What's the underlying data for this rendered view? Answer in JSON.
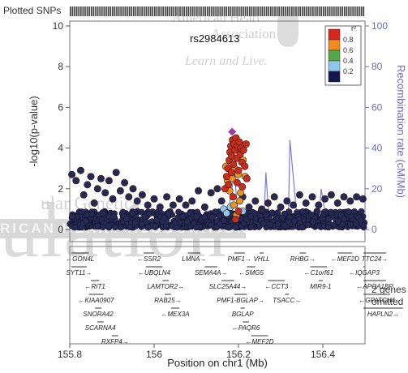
{
  "chart_data": {
    "type": "scatter",
    "title": "",
    "plotted_snps_label": "Plotted SNPs",
    "xlabel": "Position on chr1 (Mb)",
    "ylabel": "-log10(p-value)",
    "ylabel_right": "Recombination rate (cM/Mb)",
    "xlim": [
      155.8,
      156.5
    ],
    "ylim": [
      0,
      10
    ],
    "y2lim": [
      0,
      100
    ],
    "xticks": [
      "155.8",
      "156",
      "156.2",
      "156.4"
    ],
    "xtick_values": [
      155.8,
      156.0,
      156.2,
      156.4
    ],
    "yticks": [
      "0",
      "2",
      "4",
      "6",
      "8",
      "10"
    ],
    "y2ticks": [
      "0",
      "20",
      "40",
      "60",
      "80",
      "100"
    ],
    "lead_snp": {
      "label": "rs2984613",
      "x": 156.185,
      "y": 4.8,
      "color": "#9b3fa6"
    },
    "legend": {
      "title": "r²",
      "placement": "top-right",
      "bins": [
        {
          "label": "0.8",
          "color": "#d7261c"
        },
        {
          "label": "0.6",
          "color": "#f28b1e"
        },
        {
          "label": "0.4",
          "color": "#54a84a"
        },
        {
          "label": "0.2",
          "color": "#8ec9ec"
        },
        {
          "label": "",
          "color": "#15164c"
        }
      ]
    },
    "series_colors": {
      "background": "#262a52",
      "high": "#c62d1f",
      "mid": "#e5952a",
      "low": "#8ec9ec"
    },
    "background_snp_band": [
      0.1,
      0.9
    ],
    "background_snp_x": [
      155.8,
      156.5
    ],
    "background_snp_count": 780,
    "scatter_points": [
      {
        "x": 155.805,
        "y": 2.7,
        "r2": "bg"
      },
      {
        "x": 155.815,
        "y": 2.4,
        "r2": "bg"
      },
      {
        "x": 155.826,
        "y": 2.9,
        "r2": "bg"
      },
      {
        "x": 155.833,
        "y": 1.7,
        "r2": "bg"
      },
      {
        "x": 155.842,
        "y": 2.2,
        "r2": "bg"
      },
      {
        "x": 155.85,
        "y": 2.6,
        "r2": "bg"
      },
      {
        "x": 155.858,
        "y": 1.3,
        "r2": "bg"
      },
      {
        "x": 155.866,
        "y": 2.0,
        "r2": "bg"
      },
      {
        "x": 155.874,
        "y": 2.5,
        "r2": "bg"
      },
      {
        "x": 155.884,
        "y": 1.8,
        "r2": "bg"
      },
      {
        "x": 155.893,
        "y": 2.4,
        "r2": "bg"
      },
      {
        "x": 155.902,
        "y": 1.5,
        "r2": "bg"
      },
      {
        "x": 155.91,
        "y": 2.8,
        "r2": "bg"
      },
      {
        "x": 155.92,
        "y": 1.9,
        "r2": "bg"
      },
      {
        "x": 155.93,
        "y": 2.3,
        "r2": "bg"
      },
      {
        "x": 155.94,
        "y": 1.6,
        "r2": "bg"
      },
      {
        "x": 155.95,
        "y": 2.0,
        "r2": "bg"
      },
      {
        "x": 155.96,
        "y": 1.4,
        "r2": "bg"
      },
      {
        "x": 155.972,
        "y": 1.7,
        "r2": "bg"
      },
      {
        "x": 155.985,
        "y": 1.2,
        "r2": "bg"
      },
      {
        "x": 156.0,
        "y": 1.5,
        "r2": "bg"
      },
      {
        "x": 156.014,
        "y": 1.1,
        "r2": "bg"
      },
      {
        "x": 156.03,
        "y": 1.6,
        "r2": "bg"
      },
      {
        "x": 156.045,
        "y": 1.2,
        "r2": "bg"
      },
      {
        "x": 156.06,
        "y": 1.5,
        "r2": "bg"
      },
      {
        "x": 156.075,
        "y": 1.2,
        "r2": "bg"
      },
      {
        "x": 156.09,
        "y": 1.4,
        "r2": "bg"
      },
      {
        "x": 156.105,
        "y": 1.9,
        "r2": "bg"
      },
      {
        "x": 156.12,
        "y": 1.1,
        "r2": "bg"
      },
      {
        "x": 156.135,
        "y": 1.8,
        "r2": "bg"
      },
      {
        "x": 156.15,
        "y": 2.0,
        "r2": "bg"
      },
      {
        "x": 156.16,
        "y": 1.4,
        "r2": "bg"
      },
      {
        "x": 156.21,
        "y": 1.6,
        "r2": "bg"
      },
      {
        "x": 156.225,
        "y": 1.1,
        "r2": "bg"
      },
      {
        "x": 156.24,
        "y": 1.4,
        "r2": "bg"
      },
      {
        "x": 156.255,
        "y": 1.0,
        "r2": "bg"
      },
      {
        "x": 156.27,
        "y": 1.3,
        "r2": "bg"
      },
      {
        "x": 156.285,
        "y": 1.6,
        "r2": "bg"
      },
      {
        "x": 156.3,
        "y": 1.1,
        "r2": "bg"
      },
      {
        "x": 156.315,
        "y": 1.4,
        "r2": "bg"
      },
      {
        "x": 156.33,
        "y": 1.2,
        "r2": "bg"
      },
      {
        "x": 156.345,
        "y": 1.7,
        "r2": "bg"
      },
      {
        "x": 156.36,
        "y": 1.3,
        "r2": "bg"
      },
      {
        "x": 156.375,
        "y": 1.6,
        "r2": "bg"
      },
      {
        "x": 156.39,
        "y": 1.2,
        "r2": "bg"
      },
      {
        "x": 156.405,
        "y": 1.5,
        "r2": "bg"
      },
      {
        "x": 156.42,
        "y": 1.7,
        "r2": "bg"
      },
      {
        "x": 156.435,
        "y": 1.3,
        "r2": "bg"
      },
      {
        "x": 156.45,
        "y": 1.6,
        "r2": "bg"
      },
      {
        "x": 156.465,
        "y": 1.4,
        "r2": "bg"
      },
      {
        "x": 156.48,
        "y": 1.6,
        "r2": "bg"
      },
      {
        "x": 156.495,
        "y": 1.5,
        "r2": "bg"
      },
      {
        "x": 156.168,
        "y": 2.0,
        "r2": "high"
      },
      {
        "x": 156.172,
        "y": 2.6,
        "r2": "high"
      },
      {
        "x": 156.175,
        "y": 3.0,
        "r2": "high"
      },
      {
        "x": 156.178,
        "y": 3.4,
        "r2": "high"
      },
      {
        "x": 156.18,
        "y": 3.8,
        "r2": "high"
      },
      {
        "x": 156.182,
        "y": 4.1,
        "r2": "high"
      },
      {
        "x": 156.184,
        "y": 3.6,
        "r2": "high"
      },
      {
        "x": 156.186,
        "y": 4.4,
        "r2": "high"
      },
      {
        "x": 156.188,
        "y": 3.2,
        "r2": "high"
      },
      {
        "x": 156.19,
        "y": 4.2,
        "r2": "high"
      },
      {
        "x": 156.192,
        "y": 3.9,
        "r2": "high"
      },
      {
        "x": 156.194,
        "y": 4.5,
        "r2": "high"
      },
      {
        "x": 156.196,
        "y": 3.5,
        "r2": "high"
      },
      {
        "x": 156.198,
        "y": 4.1,
        "r2": "high"
      },
      {
        "x": 156.2,
        "y": 2.9,
        "r2": "high"
      },
      {
        "x": 156.202,
        "y": 4.3,
        "r2": "high"
      },
      {
        "x": 156.204,
        "y": 3.7,
        "r2": "high"
      },
      {
        "x": 156.206,
        "y": 4.0,
        "r2": "high"
      },
      {
        "x": 156.208,
        "y": 3.3,
        "r2": "high"
      },
      {
        "x": 156.212,
        "y": 3.9,
        "r2": "high"
      },
      {
        "x": 156.215,
        "y": 3.1,
        "r2": "high"
      },
      {
        "x": 156.218,
        "y": 4.2,
        "r2": "high"
      },
      {
        "x": 156.22,
        "y": 2.5,
        "r2": "high"
      },
      {
        "x": 156.176,
        "y": 2.2,
        "r2": "high"
      },
      {
        "x": 156.183,
        "y": 2.8,
        "r2": "high"
      },
      {
        "x": 156.197,
        "y": 2.3,
        "r2": "high"
      },
      {
        "x": 156.209,
        "y": 2.1,
        "r2": "high"
      },
      {
        "x": 156.187,
        "y": 1.6,
        "r2": "high"
      },
      {
        "x": 156.2,
        "y": 0.9,
        "r2": "high"
      },
      {
        "x": 156.193,
        "y": 0.5,
        "r2": "high"
      },
      {
        "x": 156.17,
        "y": 3.1,
        "r2": "mid"
      },
      {
        "x": 156.174,
        "y": 2.4,
        "r2": "mid"
      },
      {
        "x": 156.179,
        "y": 1.9,
        "r2": "mid"
      },
      {
        "x": 156.185,
        "y": 2.5,
        "r2": "mid"
      },
      {
        "x": 156.191,
        "y": 3.0,
        "r2": "mid"
      },
      {
        "x": 156.199,
        "y": 2.7,
        "r2": "mid"
      },
      {
        "x": 156.205,
        "y": 1.8,
        "r2": "mid"
      },
      {
        "x": 156.211,
        "y": 3.4,
        "r2": "mid"
      },
      {
        "x": 156.216,
        "y": 2.6,
        "r2": "mid"
      },
      {
        "x": 156.189,
        "y": 1.2,
        "r2": "mid"
      },
      {
        "x": 156.195,
        "y": 0.7,
        "r2": "mid"
      },
      {
        "x": 156.203,
        "y": 1.4,
        "r2": "mid"
      },
      {
        "x": 156.165,
        "y": 1.0,
        "r2": "low"
      },
      {
        "x": 156.172,
        "y": 0.8,
        "r2": "low"
      },
      {
        "x": 156.181,
        "y": 1.1,
        "r2": "low"
      },
      {
        "x": 156.21,
        "y": 0.9,
        "r2": "low"
      }
    ],
    "recomb_x": [
      155.8,
      155.84,
      155.88,
      155.92,
      155.96,
      156.0,
      156.04,
      156.08,
      156.12,
      156.15,
      156.17,
      156.18,
      156.19,
      156.2,
      156.22,
      156.24,
      156.26,
      156.265,
      156.27,
      156.28,
      156.3,
      156.318,
      156.322,
      156.34,
      156.36,
      156.38,
      156.392,
      156.396,
      156.41,
      156.43,
      156.45,
      156.47,
      156.5
    ],
    "recomb_y": [
      1.5,
      2.1,
      1.2,
      2.6,
      1.5,
      0.8,
      1.9,
      1.2,
      2.4,
      3.1,
      2.0,
      14,
      28,
      5,
      2.2,
      1.3,
      2.5,
      28,
      12,
      1.8,
      2.1,
      2.5,
      44,
      3.0,
      2.2,
      1.8,
      8,
      20,
      2.4,
      1.6,
      1.2,
      2.0,
      2.5
    ],
    "genes": [
      {
        "name": "GON4L",
        "start": 155.78,
        "end": 155.845,
        "row": 0,
        "dir": "<"
      },
      {
        "name": "SYT11",
        "start": 155.8,
        "end": 155.84,
        "row": 1,
        "dir": ">"
      },
      {
        "name": "RIT1",
        "start": 155.85,
        "end": 155.87,
        "row": 2,
        "dir": "<"
      },
      {
        "name": "KIAA0907",
        "start": 155.845,
        "end": 155.88,
        "row": 3,
        "dir": "<"
      },
      {
        "name": "SNORA42",
        "start": 155.86,
        "end": 155.875,
        "row": 4,
        "dir": ""
      },
      {
        "name": "SCARNA4",
        "start": 155.865,
        "end": 155.88,
        "row": 5,
        "dir": ""
      },
      {
        "name": "RXFP4",
        "start": 155.9,
        "end": 155.915,
        "row": 6,
        "dir": ">"
      },
      {
        "name": "SSR2",
        "start": 155.975,
        "end": 156.0,
        "row": 0,
        "dir": "<"
      },
      {
        "name": "UBQLN4",
        "start": 155.98,
        "end": 156.02,
        "row": 1,
        "dir": "<"
      },
      {
        "name": "LAMTOR2",
        "start": 156.02,
        "end": 156.035,
        "row": 2,
        "dir": ">"
      },
      {
        "name": "RAB25",
        "start": 156.025,
        "end": 156.04,
        "row": 3,
        "dir": ">"
      },
      {
        "name": "MEX3A",
        "start": 156.04,
        "end": 156.06,
        "row": 4,
        "dir": "<"
      },
      {
        "name": "LMNA",
        "start": 156.08,
        "end": 156.11,
        "row": 0,
        "dir": ">"
      },
      {
        "name": "SEMA4A",
        "start": 156.12,
        "end": 156.15,
        "row": 1,
        "dir": ">"
      },
      {
        "name": "SLC25A44",
        "start": 156.16,
        "end": 156.19,
        "row": 2,
        "dir": ">"
      },
      {
        "name": "PMF1",
        "start": 156.19,
        "end": 156.215,
        "row": 0,
        "dir": ">"
      },
      {
        "name": "PMF1-BGLAP",
        "start": 156.19,
        "end": 156.22,
        "row": 3,
        "dir": ">"
      },
      {
        "name": "BGLAP",
        "start": 156.205,
        "end": 156.215,
        "row": 4,
        "dir": ""
      },
      {
        "name": "PAQR6",
        "start": 156.21,
        "end": 156.225,
        "row": 5,
        "dir": "<"
      },
      {
        "name": "MEF2D",
        "start": 156.23,
        "end": 156.27,
        "row": 6,
        "dir": "<"
      },
      {
        "name": "VHLL",
        "start": 156.25,
        "end": 156.26,
        "row": 0,
        "dir": ""
      },
      {
        "name": "IQGAP3",
        "start": 156.5,
        "end": 156.55,
        "row": 1,
        "dir": "<"
      },
      {
        "name": "SMG5",
        "start": 156.22,
        "end": 156.24,
        "row": 1,
        "dir": "<"
      },
      {
        "name": "CCT3",
        "start": 156.27,
        "end": 156.31,
        "row": 2,
        "dir": "<"
      },
      {
        "name": "TSACC",
        "start": 156.31,
        "end": 156.32,
        "row": 3,
        "dir": ">"
      },
      {
        "name": "RHBG",
        "start": 156.345,
        "end": 156.36,
        "row": 0,
        "dir": ">"
      },
      {
        "name": "C1orf61",
        "start": 156.37,
        "end": 156.41,
        "row": 1,
        "dir": "<"
      },
      {
        "name": "MIR9-1",
        "start": 156.39,
        "end": 156.4,
        "row": 2,
        "dir": ""
      },
      {
        "name": "MEF2D",
        "start": 156.435,
        "end": 156.47,
        "row": 0,
        "dir": "<"
      },
      {
        "name": "TTC24",
        "start": 156.55,
        "end": 156.57,
        "row": 0,
        "dir": ">"
      },
      {
        "name": "APOA1BP",
        "start": 156.55,
        "end": 156.57,
        "row": 2,
        "dir": "<"
      },
      {
        "name": "GPATCH4",
        "start": 156.56,
        "end": 156.58,
        "row": 3,
        "dir": "<"
      },
      {
        "name": "HAPLN2",
        "start": 156.59,
        "end": 156.6,
        "row": 4,
        "dir": ">"
      }
    ],
    "genes_omitted_label": [
      "2 genes",
      "omitted"
    ],
    "grid": false
  },
  "watermark": {
    "text": "ulation",
    "subtitle": "ular Genetics",
    "band": "RICAN HEART ASSOCIATION",
    "aha_lines": [
      "American Heart",
      "Association",
      "Learn and Live."
    ]
  }
}
